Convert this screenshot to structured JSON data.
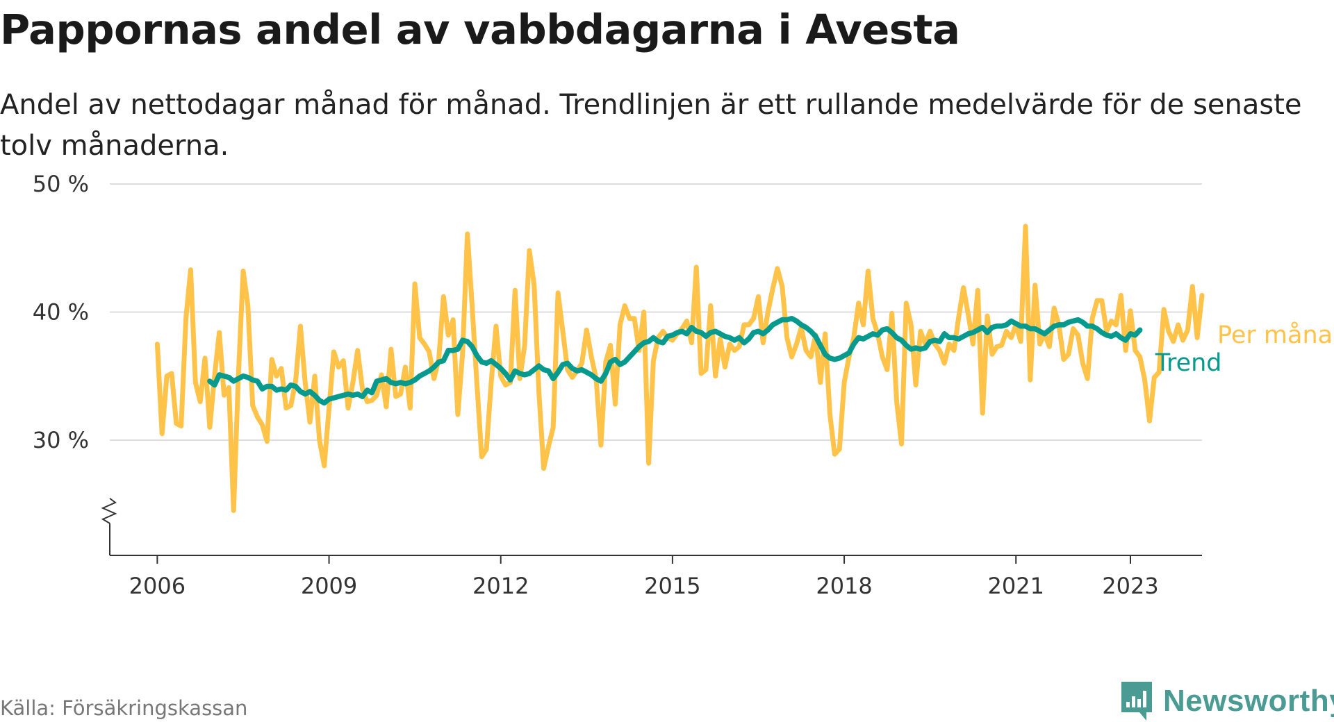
{
  "title": "Pappornas andel av vabbdagarna i Avesta",
  "subtitle": "Andel av nettodagar månad för månad. Trendlinjen är ett rullande medelvärde för de senaste tolv månaderna.",
  "source": "Källa: Försäkringskassan",
  "brand": {
    "name": "Newsworthy",
    "icon": "newsworthy-bar-chart-icon"
  },
  "colors": {
    "monthly": "#ffc34a",
    "trend": "#069a8e",
    "grid": "#dddddd",
    "axis": "#333333",
    "brand": "#4a9b93"
  },
  "chart_data": {
    "type": "line",
    "ylim": [
      21,
      50
    ],
    "yticks": [
      30,
      40,
      50
    ],
    "ytick_labels": [
      "30 %",
      "40 %",
      "50 %"
    ],
    "xlim": [
      2005.17,
      2024.25
    ],
    "xticks": [
      2006,
      2009,
      2012,
      2015,
      2018,
      2021,
      2023
    ],
    "xtick_labels": [
      "2006",
      "2009",
      "2012",
      "2015",
      "2018",
      "2021",
      "2023"
    ],
    "grid": true,
    "y_axis_break": true,
    "legend": "right end of lines",
    "x_start": "2006-01",
    "series": [
      {
        "name": "Per månad",
        "start": "2006-01",
        "values": [
          37.5,
          30.5,
          35.0,
          35.2,
          31.3,
          31.1,
          39.5,
          43.3,
          34.5,
          33.0,
          36.4,
          31.0,
          35.0,
          38.4,
          33.5,
          34.1,
          24.5,
          35.0,
          43.2,
          40.5,
          32.7,
          31.8,
          31.2,
          29.9,
          36.3,
          35.0,
          35.6,
          32.5,
          32.7,
          34.6,
          38.9,
          34.5,
          31.4,
          35.0,
          30.0,
          28.0,
          32.5,
          36.9,
          35.7,
          36.2,
          32.5,
          34.5,
          37.0,
          34.0,
          33.0,
          33.1,
          33.5,
          35.1,
          32.6,
          37.1,
          33.4,
          33.6,
          35.7,
          32.5,
          42.2,
          38.0,
          37.5,
          36.9,
          34.8,
          36.3,
          41.2,
          38.2,
          39.4,
          32.0,
          36.8,
          46.1,
          40.5,
          34.4,
          28.7,
          29.3,
          34.5,
          38.9,
          35.0,
          34.3,
          34.5,
          41.7,
          34.8,
          37.4,
          44.8,
          42.1,
          33.8,
          27.8,
          29.5,
          31.0,
          41.5,
          38.5,
          35.5,
          34.9,
          35.4,
          36.0,
          38.6,
          36.5,
          34.8,
          29.6,
          36.1,
          37.4,
          32.8,
          39.0,
          40.5,
          39.5,
          39.5,
          37.0,
          40.0,
          28.2,
          36.2,
          38.0,
          38.5,
          38.0,
          37.8,
          38.3,
          38.7,
          39.3,
          37.6,
          43.5,
          35.2,
          35.5,
          40.5,
          35.0,
          37.9,
          35.7,
          37.5,
          37.0,
          37.3,
          39.0,
          39.0,
          39.5,
          41.2,
          37.6,
          40.0,
          41.8,
          43.4,
          42.0,
          38.0,
          36.5,
          37.5,
          38.8,
          37.0,
          36.5,
          38.2,
          34.5,
          38.3,
          32.0,
          28.9,
          29.3,
          34.5,
          36.5,
          38.0,
          40.7,
          39.0,
          43.2,
          39.5,
          38.3,
          36.5,
          35.5,
          39.9,
          33.0,
          29.7,
          40.7,
          39.0,
          34.3,
          38.5,
          37.5,
          38.5,
          37.5,
          37.0,
          36.0,
          37.5,
          37.0,
          39.6,
          41.9,
          39.8,
          37.5,
          41.7,
          32.1,
          39.7,
          36.7,
          37.3,
          37.4,
          38.5,
          38.0,
          39.0,
          37.7,
          46.7,
          34.7,
          42.1,
          37.5,
          38.3,
          37.3,
          40.3,
          39.0,
          36.3,
          36.7,
          38.7,
          38.2,
          36.0,
          34.8,
          39.5,
          40.9,
          40.9,
          38.5,
          39.3,
          39.0,
          41.3,
          37.0,
          40.1,
          37.0,
          36.5,
          34.7,
          31.5,
          34.9,
          35.3,
          40.2,
          38.5,
          37.7,
          39.0,
          37.8,
          38.6,
          42.0,
          38.0,
          41.3
        ]
      },
      {
        "name": "Trend",
        "start": "2006-12",
        "values": [
          34.6,
          34.3,
          35.1,
          35.0,
          34.9,
          34.6,
          34.8,
          35.0,
          34.9,
          34.7,
          34.6,
          34.0,
          34.2,
          34.2,
          33.9,
          34.0,
          33.9,
          34.3,
          34.2,
          33.8,
          33.6,
          33.8,
          33.5,
          33.1,
          32.9,
          33.2,
          33.3,
          33.4,
          33.5,
          33.6,
          33.5,
          33.6,
          33.4,
          33.9,
          33.7,
          34.6,
          34.7,
          34.8,
          34.5,
          34.4,
          34.5,
          34.4,
          34.5,
          34.7,
          35.0,
          35.2,
          35.4,
          35.7,
          36.1,
          36.2,
          37.0,
          37.0,
          37.1,
          37.8,
          37.7,
          37.3,
          36.6,
          36.1,
          36.0,
          36.2,
          35.9,
          35.6,
          35.2,
          34.7,
          35.4,
          35.2,
          35.1,
          35.2,
          35.5,
          35.8,
          35.5,
          35.4,
          34.8,
          35.3,
          35.9,
          36.0,
          35.6,
          35.4,
          35.5,
          35.3,
          35.1,
          34.8,
          34.6,
          35.2,
          36.1,
          36.3,
          35.9,
          36.1,
          36.5,
          36.9,
          37.3,
          37.6,
          37.7,
          38.0,
          37.7,
          37.6,
          38.1,
          38.2,
          38.4,
          38.5,
          38.3,
          38.8,
          38.5,
          38.4,
          38.1,
          38.4,
          38.5,
          38.3,
          38.1,
          38.0,
          37.8,
          38.0,
          37.6,
          37.9,
          38.4,
          38.5,
          38.3,
          38.6,
          39.0,
          39.2,
          39.4,
          39.4,
          39.5,
          39.3,
          39.0,
          38.8,
          38.5,
          38.1,
          37.4,
          36.7,
          36.4,
          36.3,
          36.4,
          36.6,
          36.8,
          37.5,
          38.0,
          37.9,
          38.1,
          38.3,
          38.2,
          38.6,
          38.7,
          38.4,
          38.0,
          37.8,
          37.4,
          37.1,
          37.2,
          37.1,
          37.2,
          37.7,
          37.8,
          37.7,
          38.3,
          38.0,
          38.0,
          37.9,
          38.1,
          38.3,
          38.4,
          38.6,
          38.8,
          38.4,
          38.8,
          38.9,
          38.9,
          39.0,
          39.3,
          39.1,
          38.9,
          38.9,
          38.7,
          38.7,
          38.5,
          38.3,
          38.6,
          38.9,
          39.0,
          39.0,
          39.2,
          39.3,
          39.4,
          39.2,
          38.9,
          38.9,
          38.7,
          38.4,
          38.2,
          38.1,
          38.3,
          38.0,
          37.8,
          38.3,
          38.2,
          38.6
        ]
      }
    ]
  }
}
